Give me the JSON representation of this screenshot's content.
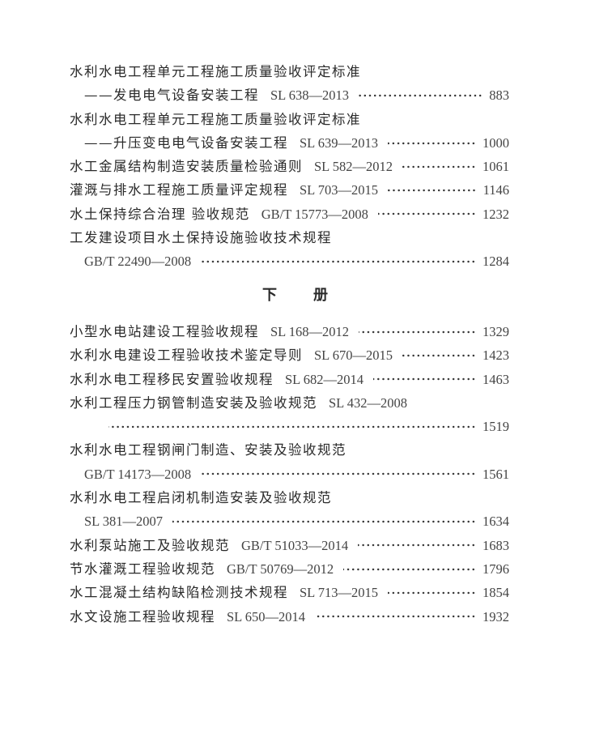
{
  "upper": [
    {
      "text": "水利水电工程单元工程施工质量验收评定标准",
      "code": "",
      "page": ""
    },
    {
      "text": "——发电电气设备安装工程",
      "code": "SL 638—2013",
      "page": "883",
      "indent": "indent"
    },
    {
      "text": "水利水电工程单元工程施工质量验收评定标准",
      "code": "",
      "page": ""
    },
    {
      "text": "——升压变电电气设备安装工程",
      "code": "SL 639—2013",
      "page": "1000",
      "indent": "indent"
    },
    {
      "text": "水工金属结构制造安装质量检验通则",
      "code": "SL 582—2012",
      "page": "1061"
    },
    {
      "text": "灌溉与排水工程施工质量评定规程",
      "code": "SL 703—2015",
      "page": "1146"
    },
    {
      "text": "水土保持综合治理  验收规范",
      "code": "GB/T 15773—2008",
      "page": "1232"
    },
    {
      "text": "工发建设项目水土保持设施验收技术规程",
      "code": "",
      "page": ""
    },
    {
      "text": "",
      "code": "GB/T 22490—2008",
      "page": "1284",
      "indent": "indent"
    }
  ],
  "heading": [
    "下",
    "册"
  ],
  "lower": [
    {
      "text": "小型水电站建设工程验收规程",
      "code": "SL 168—2012",
      "page": "1329"
    },
    {
      "text": "水利水电建设工程验收技术鉴定导则",
      "code": "SL 670—2015",
      "page": "1423"
    },
    {
      "text": "水利水电工程移民安置验收规程",
      "code": "SL 682—2014",
      "page": "1463"
    },
    {
      "text": "水利工程压力钢管制造安装及验收规范",
      "code": "SL 432—2008",
      "page": ""
    },
    {
      "text": "",
      "code": "",
      "page": "1519",
      "indent": "deep"
    },
    {
      "text": "水利水电工程钢闸门制造、安装及验收规范",
      "code": "",
      "page": ""
    },
    {
      "text": "",
      "code": "GB/T 14173—2008",
      "page": "1561",
      "indent": "indent"
    },
    {
      "text": "水利水电工程启闭机制造安装及验收规范",
      "code": "",
      "page": ""
    },
    {
      "text": "",
      "code": "SL 381—2007",
      "page": "1634",
      "indent": "indent"
    },
    {
      "text": "水利泵站施工及验收规范",
      "code": "GB/T 51033—2014",
      "page": "1683"
    },
    {
      "text": "节水灌溉工程验收规范",
      "code": "GB/T 50769—2012",
      "page": "1796"
    },
    {
      "text": "水工混凝土结构缺陷检测技术规程",
      "code": "SL 713—2015",
      "page": "1854"
    },
    {
      "text": "水文设施工程验收规程",
      "code": "SL 650—2014",
      "page": "1932"
    }
  ]
}
